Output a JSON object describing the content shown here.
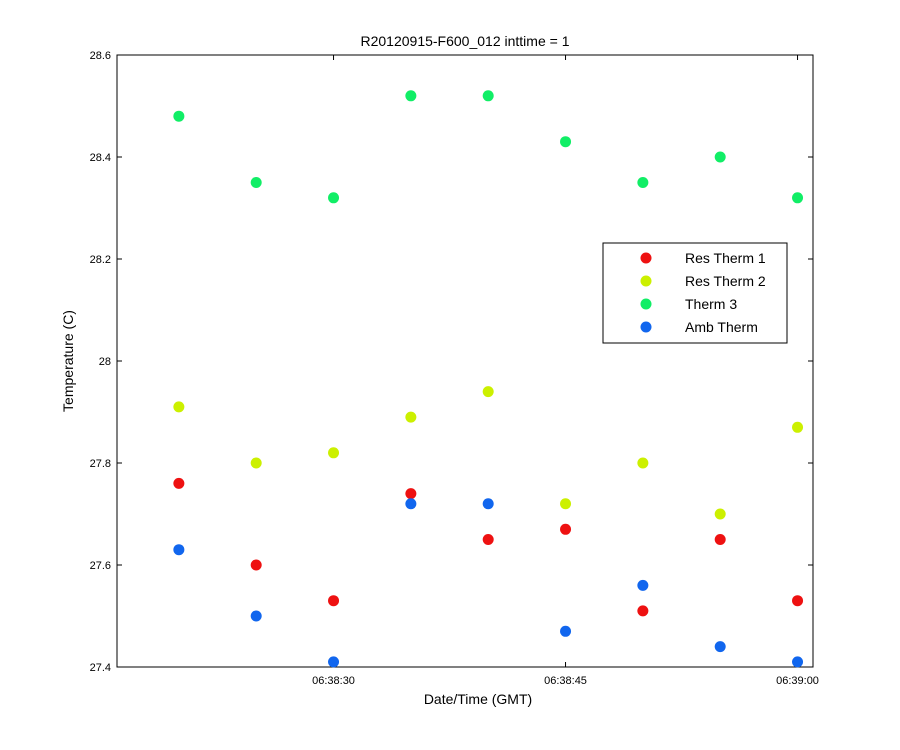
{
  "chart_data": {
    "type": "scatter",
    "title": "R20120915-F600_012 inttime = 1",
    "xlabel": "Date/Time (GMT)",
    "ylabel": "Temperature (C)",
    "xlim": [
      "06:38:16",
      "06:39:01"
    ],
    "ylim": [
      27.4,
      28.6
    ],
    "x_ticks": [
      "06:38:30",
      "06:38:45",
      "06:39:00"
    ],
    "y_ticks": [
      "27.4",
      "27.6",
      "27.8",
      "28",
      "28.2",
      "28.4",
      "28.6"
    ],
    "grid": false,
    "legend_position": "right",
    "x": [
      "06:38:20",
      "06:38:25",
      "06:38:30",
      "06:38:35",
      "06:38:40",
      "06:38:45",
      "06:38:50",
      "06:38:55",
      "06:39:00"
    ],
    "series": [
      {
        "name": "Res Therm 1",
        "color": "#ee1111",
        "values": [
          27.76,
          27.6,
          27.53,
          27.74,
          27.65,
          27.67,
          27.51,
          27.65,
          27.53
        ]
      },
      {
        "name": "Res Therm 2",
        "color": "#ccf000",
        "values": [
          27.91,
          27.8,
          27.82,
          27.89,
          27.94,
          27.72,
          27.8,
          27.7,
          27.87
        ]
      },
      {
        "name": "Therm 3",
        "color": "#11ee66",
        "values": [
          28.48,
          28.35,
          28.32,
          28.52,
          28.52,
          28.43,
          28.35,
          28.4,
          28.32
        ]
      },
      {
        "name": "Amb Therm",
        "color": "#1166ee",
        "values": [
          27.63,
          27.5,
          27.41,
          27.72,
          27.72,
          27.47,
          27.56,
          27.44,
          27.41
        ]
      }
    ]
  }
}
